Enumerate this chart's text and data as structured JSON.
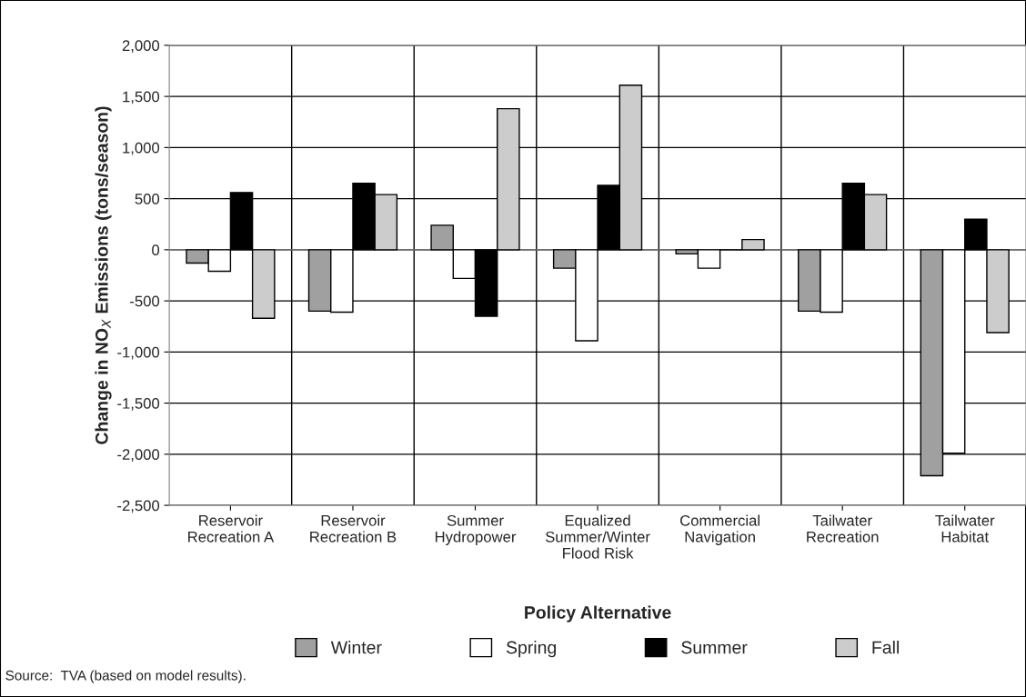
{
  "chart_data": {
    "type": "bar",
    "xlabel": "Policy Alternative",
    "ylabel": "Change in NO$_{X}$ Emissions (tons/season)",
    "categories": [
      "Reservoir\nRecreation A",
      "Reservoir\nRecreation B",
      "Summer\nHydropower",
      "Equalized\nSummer/Winter\nFlood Risk",
      "Commercial\nNavigation",
      "Tailwater\nRecreation",
      "Tailwater\nHabitat"
    ],
    "series": [
      {
        "name": "Winter",
        "color": "#a0a0a0",
        "values": [
          -130,
          -600,
          240,
          -180,
          -40,
          -600,
          -2210
        ]
      },
      {
        "name": "Spring",
        "color": "#ffffff",
        "values": [
          -210,
          -610,
          -280,
          -890,
          -180,
          -610,
          -1990
        ]
      },
      {
        "name": "Summer",
        "color": "#000000",
        "values": [
          560,
          650,
          -650,
          630,
          0,
          650,
          300
        ]
      },
      {
        "name": "Fall",
        "color": "#cccccc",
        "values": [
          -670,
          540,
          1380,
          1610,
          100,
          540,
          -810
        ]
      }
    ],
    "ylim": [
      -2500,
      2000
    ],
    "yticks": [
      {
        "value": 2000,
        "label": "2,000"
      },
      {
        "value": 1500,
        "label": "1,500"
      },
      {
        "value": 1000,
        "label": "1,000"
      },
      500,
      0,
      -500,
      {
        "value": -1000,
        "label": "-1,000"
      },
      {
        "value": -1500,
        "label": "-1,500"
      },
      {
        "value": -2000,
        "label": "-2,000"
      },
      {
        "value": -2500,
        "label": "-2,500"
      }
    ],
    "grid": true,
    "legend": "bottom",
    "annotations": [
      "Source:  TVA (based on model results)."
    ]
  }
}
